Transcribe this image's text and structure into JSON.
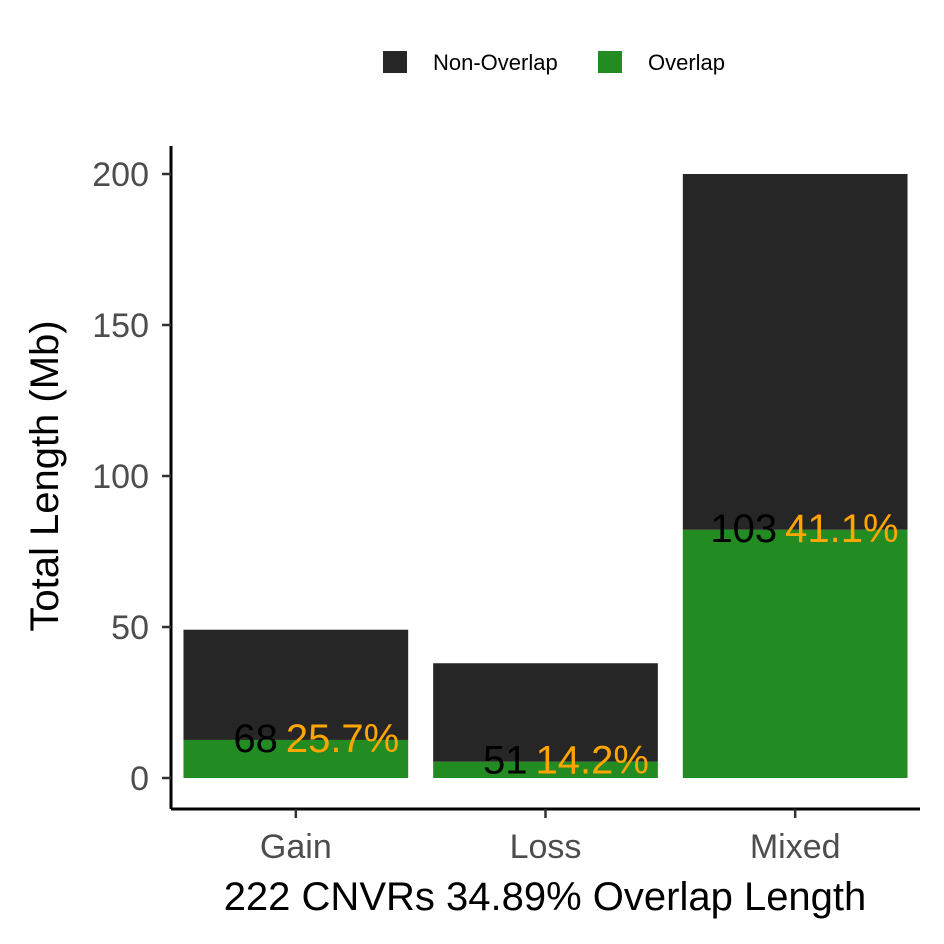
{
  "chart_data": {
    "type": "bar",
    "stacked": true,
    "categories": [
      "Gain",
      "Loss",
      "Mixed"
    ],
    "series": [
      {
        "name": "Non-Overlap",
        "values": [
          36.5,
          32.6,
          117.8
        ],
        "color": "#262626"
      },
      {
        "name": "Overlap",
        "values": [
          12.6,
          5.4,
          82.2
        ],
        "color": "#228B22"
      }
    ],
    "totals": [
      49.1,
      38.0,
      200.0
    ],
    "bar_labels": [
      {
        "count": "68",
        "percent": "25.7%"
      },
      {
        "count": "51",
        "percent": "14.2%"
      },
      {
        "count": "103",
        "percent": "41.1%"
      }
    ],
    "count_label_color": "#000000",
    "percent_label_color": "#FFA500",
    "ylabel": "Total Length (Mb)",
    "xlabel": "222 CNVRs 34.89% Overlap Length",
    "ylim": [
      -10,
      209
    ],
    "yticks": [
      0,
      50,
      100,
      150,
      200
    ],
    "legend_position": "top",
    "grid": false
  }
}
